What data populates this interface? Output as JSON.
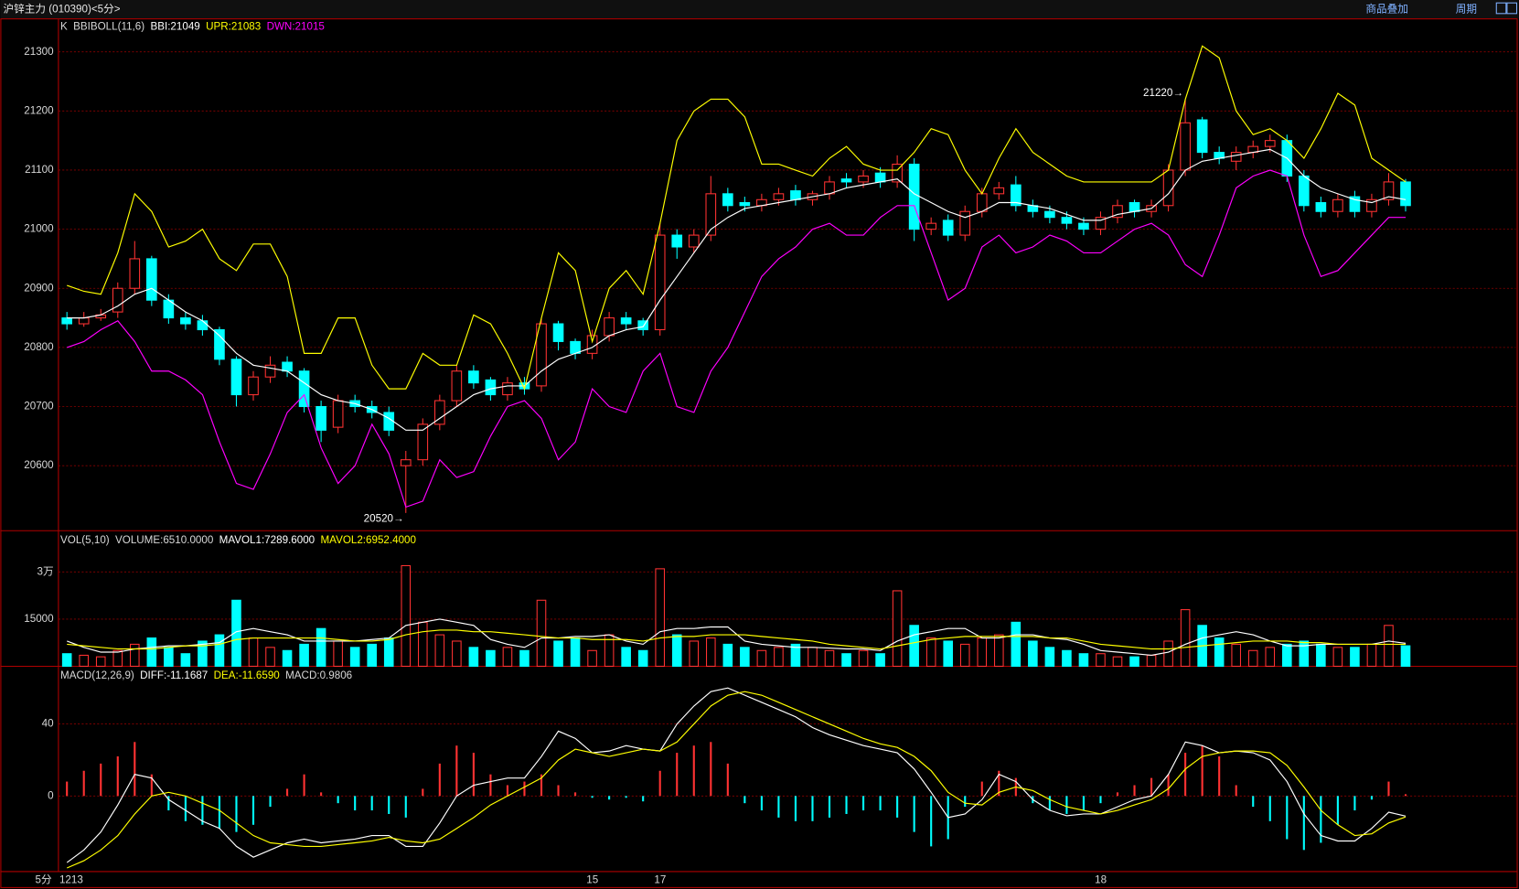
{
  "header": {
    "title": "沪锌主力 (010390)<5分>",
    "tools": [
      "商品叠加",
      "周期"
    ]
  },
  "x_axis": {
    "unit": "5分",
    "labels": [
      {
        "index": 0,
        "label": "1213"
      },
      {
        "index": 31,
        "label": "15"
      },
      {
        "index": 35,
        "label": "17"
      },
      {
        "index": 61,
        "label": "18"
      }
    ]
  },
  "chart_data": [
    {
      "type": "candlestick",
      "legend": [
        "K",
        "BBIBOLL(11,6)"
      ],
      "up_color": "#ff3232",
      "down_color": "#00ffff",
      "open": [
        20850,
        20840,
        20850,
        20860,
        20900,
        20950,
        20880,
        20850,
        20845,
        20830,
        20780,
        20720,
        20750,
        20775,
        20760,
        20700,
        20665,
        20710,
        20700,
        20690,
        20600,
        20610,
        20670,
        20710,
        20760,
        20745,
        20720,
        20740,
        20735,
        20840,
        20810,
        20790,
        20820,
        20850,
        20845,
        20830,
        20990,
        20970,
        20990,
        21060,
        21045,
        21040,
        21050,
        21065,
        21050,
        21060,
        21085,
        21080,
        21095,
        21080,
        21110,
        21000,
        21015,
        20990,
        21030,
        21060,
        21075,
        21040,
        21030,
        21020,
        21010,
        21000,
        21020,
        21045,
        21030,
        21040,
        21100,
        21185,
        21130,
        21115,
        21130,
        21140,
        21150,
        21090,
        21045,
        21030,
        21055,
        21030,
        21050,
        21080
      ],
      "high": [
        20860,
        20860,
        20865,
        20910,
        20980,
        20955,
        20890,
        20860,
        20855,
        20835,
        20785,
        20760,
        20785,
        20785,
        20765,
        20710,
        20720,
        20720,
        20710,
        20700,
        20625,
        20680,
        20720,
        20770,
        20770,
        20750,
        20750,
        20750,
        20850,
        20845,
        20815,
        20830,
        20860,
        20860,
        20850,
        21010,
        21000,
        21000,
        21090,
        21070,
        21055,
        21060,
        21070,
        21075,
        21065,
        21090,
        21095,
        21100,
        21105,
        21125,
        21120,
        21020,
        21025,
        21040,
        21070,
        21080,
        21090,
        21050,
        21040,
        21030,
        21020,
        21030,
        21050,
        21050,
        21050,
        21110,
        21220,
        21190,
        21140,
        21140,
        21150,
        21160,
        21160,
        21100,
        21055,
        21060,
        21065,
        21060,
        21095,
        21085
      ],
      "low": [
        20830,
        20835,
        20845,
        20850,
        20890,
        20870,
        20840,
        20830,
        20820,
        20770,
        20700,
        20710,
        20740,
        20750,
        20690,
        20640,
        20655,
        20690,
        20680,
        20650,
        20520,
        20600,
        20660,
        20700,
        20730,
        20710,
        20710,
        20720,
        20725,
        20795,
        20780,
        20780,
        20810,
        20830,
        20820,
        20820,
        20950,
        20960,
        20980,
        21030,
        21030,
        21030,
        21040,
        21040,
        21040,
        21050,
        21070,
        21070,
        21070,
        21070,
        20980,
        20990,
        20980,
        20980,
        21020,
        21050,
        21030,
        21020,
        21010,
        21000,
        20990,
        20990,
        21010,
        21020,
        21020,
        21030,
        21090,
        21120,
        21110,
        21100,
        21120,
        21130,
        21080,
        21030,
        21020,
        21020,
        21020,
        21020,
        21040,
        21030
      ],
      "close": [
        20840,
        20850,
        20855,
        20900,
        20950,
        20880,
        20850,
        20840,
        20830,
        20780,
        20720,
        20750,
        20770,
        20760,
        20700,
        20660,
        20710,
        20700,
        20690,
        20660,
        20610,
        20670,
        20710,
        20760,
        20740,
        20720,
        20740,
        20730,
        20840,
        20810,
        20790,
        20820,
        20850,
        20840,
        20830,
        20990,
        20970,
        20990,
        21060,
        21040,
        21040,
        21050,
        21060,
        21050,
        21060,
        21080,
        21080,
        21090,
        21080,
        21110,
        21000,
        21010,
        20990,
        21030,
        21060,
        21070,
        21040,
        21030,
        21020,
        21010,
        21000,
        21020,
        21040,
        21030,
        21040,
        21100,
        21180,
        21130,
        21120,
        21130,
        21140,
        21150,
        21090,
        21040,
        21030,
        21050,
        21030,
        21050,
        21080,
        21040
      ],
      "series": [
        {
          "name": "BBI:21049",
          "color": "#ffffff",
          "values": [
            20850,
            20850,
            20855,
            20870,
            20890,
            20900,
            20880,
            20860,
            20845,
            20820,
            20790,
            20770,
            20765,
            20760,
            20740,
            20720,
            20710,
            20705,
            20695,
            20680,
            20660,
            20660,
            20680,
            20700,
            20720,
            20730,
            20735,
            20735,
            20760,
            20780,
            20790,
            20800,
            20820,
            20830,
            20835,
            20880,
            20920,
            20960,
            21000,
            21020,
            21035,
            21040,
            21045,
            21050,
            21055,
            21060,
            21070,
            21075,
            21080,
            21085,
            21060,
            21045,
            21030,
            21020,
            21030,
            21045,
            21045,
            21040,
            21035,
            21025,
            21015,
            21015,
            21025,
            21030,
            21035,
            21060,
            21100,
            21115,
            21120,
            21125,
            21130,
            21135,
            21120,
            21090,
            21070,
            21060,
            21050,
            21045,
            21055,
            21050
          ]
        },
        {
          "name": "UPR:21083",
          "color": "#ffff00",
          "values": [
            20905,
            20895,
            20890,
            20960,
            21060,
            21030,
            20970,
            20980,
            21000,
            20950,
            20930,
            20975,
            20975,
            20920,
            20790,
            20790,
            20850,
            20850,
            20770,
            20730,
            20730,
            20790,
            20770,
            20770,
            20855,
            20840,
            20790,
            20730,
            20850,
            20960,
            20930,
            20810,
            20900,
            20930,
            20890,
            21010,
            21150,
            21200,
            21220,
            21220,
            21190,
            21110,
            21110,
            21100,
            21090,
            21120,
            21140,
            21110,
            21100,
            21100,
            21130,
            21170,
            21160,
            21100,
            21060,
            21120,
            21170,
            21130,
            21110,
            21090,
            21080,
            21080,
            21080,
            21080,
            21080,
            21100,
            21220,
            21310,
            21290,
            21200,
            21160,
            21170,
            21150,
            21120,
            21170,
            21230,
            21210,
            21120,
            21100,
            21080
          ]
        },
        {
          "name": "DWN:21015",
          "color": "#ff00ff",
          "values": [
            20800,
            20810,
            20830,
            20845,
            20810,
            20760,
            20760,
            20745,
            20720,
            20640,
            20570,
            20560,
            20620,
            20690,
            20720,
            20630,
            20570,
            20600,
            20670,
            20620,
            20530,
            20540,
            20610,
            20580,
            20590,
            20650,
            20700,
            20710,
            20680,
            20610,
            20640,
            20730,
            20700,
            20690,
            20760,
            20790,
            20700,
            20690,
            20760,
            20800,
            20860,
            20920,
            20950,
            20970,
            21000,
            21010,
            20990,
            20990,
            21020,
            21040,
            21040,
            20960,
            20880,
            20900,
            20970,
            20990,
            20960,
            20970,
            20990,
            20980,
            20960,
            20960,
            20980,
            21000,
            21010,
            20990,
            20940,
            20920,
            20990,
            21070,
            21090,
            21100,
            21090,
            20990,
            20920,
            20930,
            20960,
            20990,
            21020,
            21020
          ]
        }
      ],
      "annotations": [
        {
          "text": "20520→",
          "index": 20,
          "at": "low"
        },
        {
          "text": "21220→",
          "index": 66,
          "at": "high"
        }
      ],
      "ylim": [
        20490,
        21355
      ],
      "yticks": [
        20600,
        20700,
        20800,
        20900,
        21000,
        21100,
        21200,
        21300
      ],
      "grid": true
    },
    {
      "type": "bar",
      "title": "VOL(5,10)",
      "value_label": "VOLUME:6510.0000",
      "up_color": "#ff3232",
      "down_color": "#00ffff",
      "values": [
        4000,
        3500,
        3000,
        5000,
        7000,
        9000,
        6000,
        4000,
        8000,
        10000,
        21000,
        9000,
        6000,
        5000,
        7000,
        12000,
        8000,
        6000,
        7000,
        9000,
        32000,
        14000,
        10000,
        8000,
        6000,
        5000,
        6000,
        5000,
        21000,
        8000,
        9000,
        5000,
        10000,
        6000,
        5000,
        31000,
        10000,
        8000,
        9000,
        7000,
        6000,
        5000,
        6000,
        7000,
        6000,
        5000,
        4000,
        5000,
        4000,
        24000,
        13000,
        9000,
        8000,
        7000,
        9000,
        10000,
        14000,
        8000,
        6000,
        5000,
        4000,
        4000,
        3000,
        3000,
        3500,
        8000,
        18000,
        13000,
        9000,
        7000,
        5000,
        6000,
        7000,
        8000,
        7000,
        6000,
        6000,
        7000,
        13000,
        6510
      ],
      "series": [
        {
          "name": "MAVOL1:7289.6000",
          "color": "#ffffff",
          "values": [
            8000,
            6000,
            4500,
            4500,
            5500,
            6000,
            6500,
            6500,
            7000,
            7500,
            11000,
            12000,
            11000,
            10000,
            8000,
            8000,
            8000,
            8000,
            8500,
            9000,
            13000,
            14000,
            15000,
            14000,
            13000,
            8500,
            7000,
            6000,
            9000,
            9000,
            9500,
            9500,
            10000,
            8000,
            7000,
            11000,
            12000,
            12000,
            12500,
            12500,
            8000,
            7000,
            6500,
            6000,
            6000,
            5800,
            5500,
            5500,
            5000,
            8000,
            10000,
            11000,
            12000,
            12000,
            9000,
            9000,
            10000,
            10000,
            9000,
            8500,
            7000,
            5000,
            4500,
            4000,
            3500,
            4500,
            7000,
            9000,
            10000,
            11000,
            10000,
            8000,
            6500,
            6500,
            7000,
            7000,
            7000,
            7000,
            8000,
            7289.6
          ]
        },
        {
          "name": "MAVOL2:6952.4000",
          "color": "#ffff00",
          "values": [
            7000,
            6500,
            6000,
            5500,
            5500,
            5500,
            6000,
            6500,
            6500,
            7000,
            8500,
            9000,
            9000,
            9000,
            9000,
            9000,
            8500,
            8000,
            8000,
            8500,
            10000,
            11000,
            11500,
            11500,
            11000,
            11000,
            10500,
            10000,
            9500,
            9000,
            9000,
            8500,
            8500,
            8500,
            8000,
            9000,
            9500,
            9500,
            10000,
            10000,
            10000,
            9500,
            9000,
            8500,
            8000,
            7000,
            6500,
            6000,
            5500,
            6500,
            7500,
            8500,
            9000,
            9500,
            9500,
            9500,
            9500,
            9500,
            9000,
            9000,
            8000,
            7000,
            6500,
            6000,
            5500,
            5500,
            6000,
            6500,
            7000,
            7500,
            8000,
            8000,
            8000,
            7500,
            7500,
            7000,
            7000,
            7000,
            7000,
            6952.4
          ]
        }
      ],
      "ylim": [
        0,
        42500
      ],
      "yticks": [
        15000,
        {
          "value": 30000,
          "label": "3万"
        }
      ],
      "grid": true
    },
    {
      "type": "macd",
      "title": "MACD(12,26,9)",
      "value_label": "MACD:0.9806",
      "up_color": "#ff3232",
      "down_color": "#00ffff",
      "values": [
        8,
        14,
        18,
        22,
        30,
        12,
        -8,
        -14,
        -16,
        -18,
        -20,
        -16,
        -6,
        4,
        12,
        2,
        -4,
        -8,
        -8,
        -10,
        -12,
        4,
        18,
        28,
        24,
        12,
        6,
        8,
        12,
        6,
        2,
        -1,
        -2,
        -1,
        -3,
        14,
        24,
        28,
        30,
        18,
        -4,
        -8,
        -12,
        -14,
        -14,
        -12,
        -10,
        -8,
        -8,
        -12,
        -20,
        -28,
        -24,
        -6,
        8,
        14,
        10,
        -4,
        -8,
        -10,
        -8,
        -4,
        2,
        6,
        10,
        12,
        24,
        28,
        22,
        6,
        -6,
        -14,
        -24,
        -30,
        -26,
        -16,
        -8,
        -2,
        8,
        0.9806
      ],
      "series": [
        {
          "name": "DIFF:-11.1687",
          "color": "#ffffff",
          "values": [
            -37,
            -30,
            -20,
            -5,
            12,
            10,
            -2,
            -8,
            -14,
            -18,
            -28,
            -34,
            -30,
            -26,
            -24,
            -26,
            -25,
            -24,
            -22,
            -22,
            -28,
            -28,
            -15,
            0,
            6,
            8,
            10,
            10,
            22,
            36,
            32,
            24,
            25,
            28,
            26,
            25,
            40,
            50,
            58,
            60,
            56,
            52,
            48,
            44,
            38,
            34,
            31,
            28,
            26,
            24,
            15,
            2,
            -12,
            -10,
            -2,
            12,
            8,
            -2,
            -8,
            -11,
            -10,
            -10,
            -6,
            -2,
            0,
            12,
            30,
            28,
            24,
            25,
            24,
            20,
            8,
            -10,
            -22,
            -25,
            -25,
            -18,
            -9,
            -11.1687
          ]
        },
        {
          "name": "DEA:-11.6590",
          "color": "#ffff00",
          "values": [
            -40,
            -36,
            -30,
            -22,
            -10,
            0,
            2,
            0,
            -4,
            -8,
            -15,
            -22,
            -26,
            -27,
            -28,
            -28,
            -27,
            -26,
            -25,
            -23,
            -25,
            -26,
            -24,
            -18,
            -12,
            -5,
            0,
            5,
            10,
            20,
            26,
            24,
            22,
            24,
            26,
            25,
            30,
            40,
            50,
            56,
            58,
            56,
            52,
            48,
            44,
            40,
            36,
            32,
            29,
            27,
            22,
            14,
            2,
            -4,
            -5,
            2,
            5,
            3,
            -2,
            -6,
            -8,
            -10,
            -8,
            -5,
            -2,
            4,
            15,
            22,
            24,
            25,
            25,
            24,
            17,
            5,
            -8,
            -16,
            -22,
            -21,
            -15,
            -11.659
          ]
        }
      ],
      "ylim": [
        -42,
        71
      ],
      "yticks": [
        0,
        40
      ],
      "grid": true
    }
  ]
}
